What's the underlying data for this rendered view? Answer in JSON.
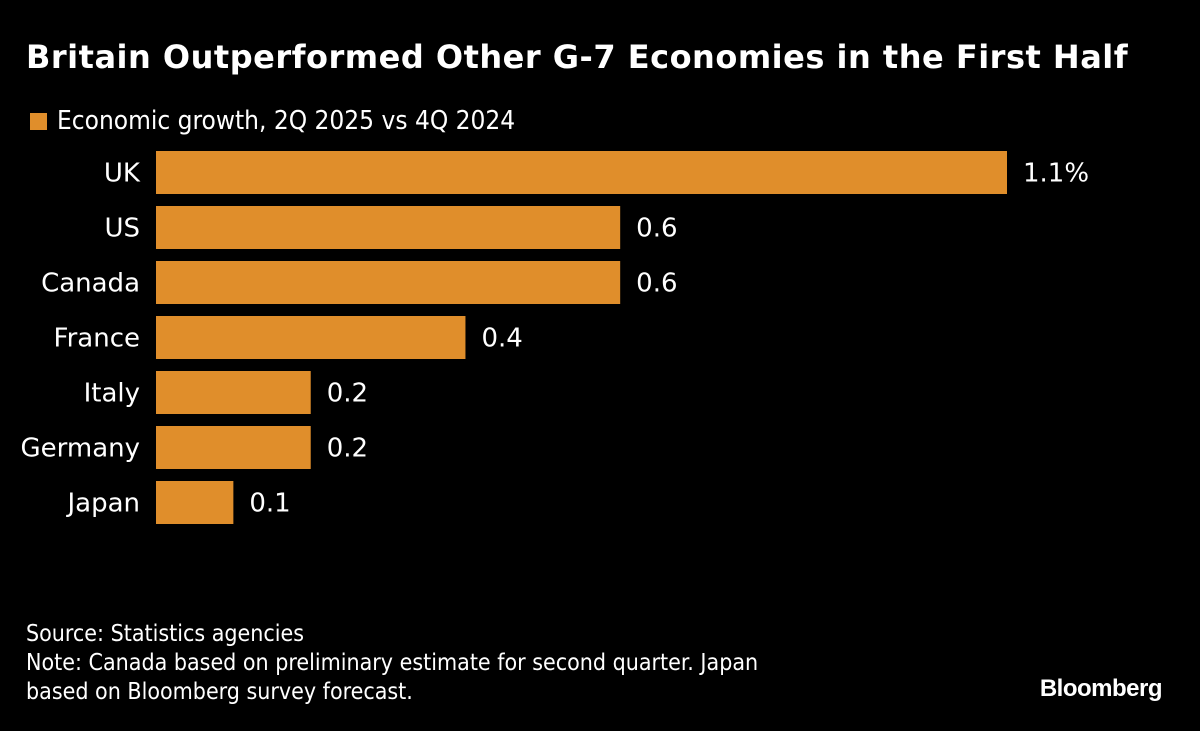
{
  "title": "Britain Outperformed Other G-7 Economies in the First Half",
  "legend": {
    "label": "Economic growth, 2Q 2025 vs 4Q 2024",
    "color": "#E08E2B"
  },
  "footer": {
    "source": "Source: Statistics agencies",
    "note_line1": "Note: Canada based on preliminary estimate for second quarter. Japan",
    "note_line2": "based on Bloomberg survey forecast."
  },
  "brand": "Bloomberg",
  "chart_data": {
    "type": "bar",
    "orientation": "horizontal",
    "title": "Britain Outperformed Other G-7 Economies in the First Half",
    "xlabel": "",
    "ylabel": "",
    "unit": "%",
    "categories": [
      "UK",
      "US",
      "Canada",
      "France",
      "Italy",
      "Germany",
      "Japan"
    ],
    "values": [
      1.1,
      0.6,
      0.6,
      0.4,
      0.2,
      0.2,
      0.1
    ],
    "value_labels": [
      "1.1%",
      "0.6",
      "0.6",
      "0.4",
      "0.2",
      "0.2",
      "0.1"
    ],
    "series": [
      {
        "name": "Economic growth, 2Q 2025 vs 4Q 2024",
        "values": [
          1.1,
          0.6,
          0.6,
          0.4,
          0.2,
          0.2,
          0.1
        ]
      }
    ],
    "xlim": [
      0,
      1.1
    ],
    "grid": false,
    "legend_position": "top-left",
    "bar_color": "#E08E2B"
  }
}
